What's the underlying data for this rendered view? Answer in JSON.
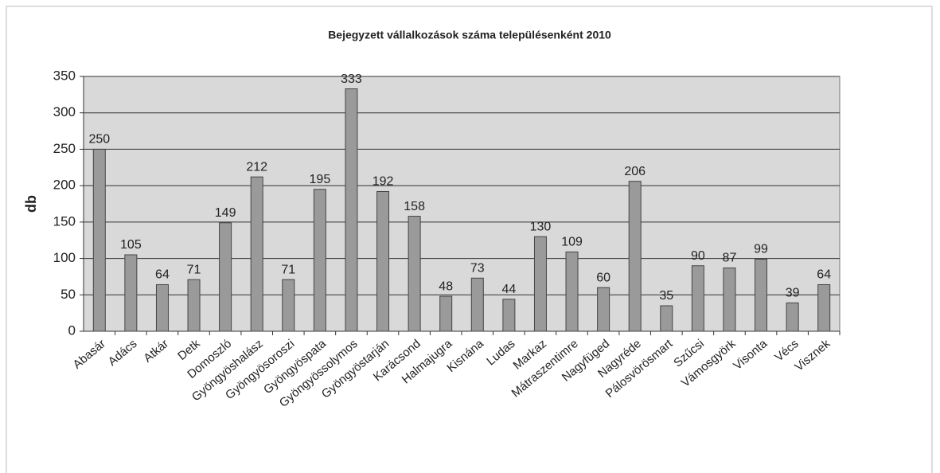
{
  "chart_data": {
    "type": "bar",
    "title": "Bejegyzett vállalkozások száma településenként 2010",
    "y_label": "db",
    "categories": [
      "Abasár",
      "Adács",
      "Atkár",
      "Detk",
      "Domoszló",
      "Gyöngyöshalász",
      "Gyöngyösoroszi",
      "Gyöngyöspata",
      "Gyöngyössolymos",
      "Gyöngyöstarján",
      "Karácsond",
      "Halmajugra",
      "Kisnána",
      "Ludas",
      "Markaz",
      "Mátraszentimre",
      "Nagyfüged",
      "Nagyréde",
      "Pálosvörösmart",
      "Szűcsi",
      "Vámosgyörk",
      "Visonta",
      "Vécs",
      "Visznek"
    ],
    "values": [
      250,
      105,
      64,
      71,
      149,
      212,
      71,
      195,
      333,
      192,
      158,
      48,
      73,
      44,
      130,
      109,
      60,
      206,
      35,
      90,
      87,
      99,
      39,
      64
    ],
    "color": "#9a9a9a",
    "ylim": [
      0,
      350
    ],
    "yticks": [
      0,
      50,
      100,
      150,
      200,
      250,
      300,
      350
    ],
    "grid": true
  }
}
